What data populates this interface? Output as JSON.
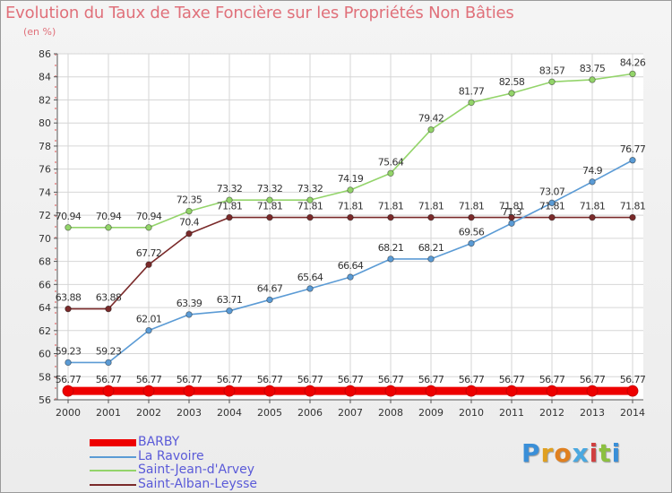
{
  "chart_data": {
    "type": "line",
    "title": "Evolution du Taux de Taxe Foncière sur les Propriétés Non Bâties",
    "subtitle": "(en %)",
    "x": [
      "2000",
      "2001",
      "2002",
      "2003",
      "2004",
      "2005",
      "2006",
      "2007",
      "2008",
      "2009",
      "2010",
      "2011",
      "2012",
      "2013",
      "2014"
    ],
    "ylim": [
      56,
      86
    ],
    "yticks": [
      "56",
      "58",
      "60",
      "62",
      "64",
      "66",
      "68",
      "70",
      "72",
      "74",
      "76",
      "78",
      "80",
      "82",
      "84",
      "86"
    ],
    "grid": true,
    "legend_position": "bottom-left",
    "series": [
      {
        "name": "BARBY",
        "color": "#ee0000",
        "values": [
          56.77,
          56.77,
          56.77,
          56.77,
          56.77,
          56.77,
          56.77,
          56.77,
          56.77,
          56.77,
          56.77,
          56.77,
          56.77,
          56.77,
          56.77
        ],
        "labels": [
          "56.77",
          "56.77",
          "56.77",
          "56.77",
          "56.77",
          "56.77",
          "56.77",
          "56.77",
          "56.77",
          "56.77",
          "56.77",
          "56.77",
          "56.77",
          "56.77",
          "56.77"
        ]
      },
      {
        "name": "La Ravoire",
        "color": "#5b9bd5",
        "values": [
          59.23,
          59.23,
          62.01,
          63.39,
          63.71,
          64.67,
          65.64,
          66.64,
          68.21,
          68.21,
          69.56,
          71.3,
          73.07,
          74.9,
          76.77
        ],
        "labels": [
          "59.23",
          "59.23",
          "62.01",
          "63.39",
          "63.71",
          "64.67",
          "65.64",
          "66.64",
          "68.21",
          "68.21",
          "69.56",
          "71.3",
          "73.07",
          "74.9",
          "76.77"
        ]
      },
      {
        "name": "Saint-Jean-d'Arvey",
        "color": "#93d46a",
        "values": [
          70.94,
          70.94,
          70.94,
          72.35,
          73.32,
          73.32,
          73.32,
          74.19,
          75.64,
          79.42,
          81.77,
          82.58,
          83.57,
          83.75,
          84.26
        ],
        "labels": [
          "70.94",
          "70.94",
          "70.94",
          "72.35",
          "73.32",
          "73.32",
          "73.32",
          "74.19",
          "75.64",
          "79.42",
          "81.77",
          "82.58",
          "83.57",
          "83.75",
          "84.26"
        ]
      },
      {
        "name": "Saint-Alban-Leysse",
        "color": "#7a2a2a",
        "values": [
          63.88,
          63.88,
          67.72,
          70.4,
          71.81,
          71.81,
          71.81,
          71.81,
          71.81,
          71.81,
          71.81,
          71.81,
          71.81,
          71.81,
          71.81
        ],
        "labels": [
          "63.88",
          "63.88",
          "67.72",
          "70.4",
          "71.81",
          "71.81",
          "71.81",
          "71.81",
          "71.81",
          "71.81",
          "71.81",
          "71.81",
          "71.81",
          "71.81",
          "71.81"
        ]
      }
    ]
  },
  "logo": {
    "letters": [
      "P",
      "r",
      "o",
      "x",
      "i",
      "t",
      "i"
    ],
    "colors": [
      "#3a8fd8",
      "#e0a020",
      "#e08020",
      "#4aa8e0",
      "#d04040",
      "#8cc040",
      "#3a8fd8"
    ]
  }
}
